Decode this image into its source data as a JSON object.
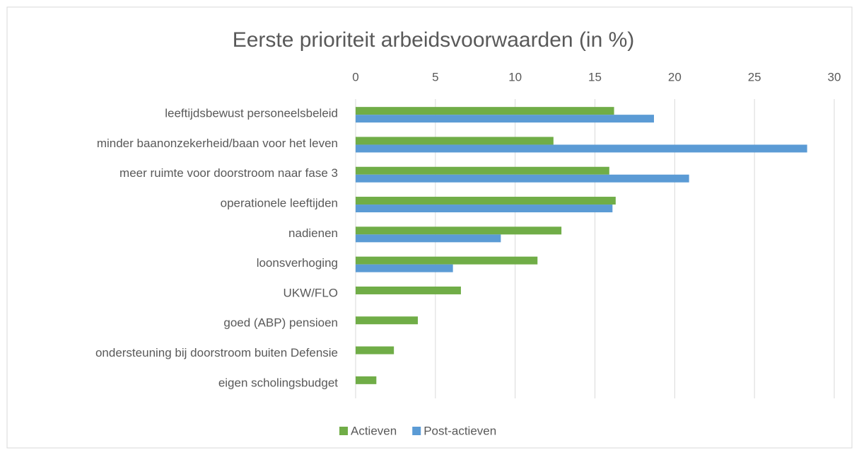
{
  "chart_data": {
    "type": "bar",
    "orientation": "horizontal",
    "title": "Eerste prioriteit arbeidsvoorwaarden (in %)",
    "categories": [
      "leeftijdsbewust personeelsbeleid",
      "minder baanonzekerheid/baan voor het leven",
      "meer ruimte voor doorstroom naar fase 3",
      "operationele leeftijden",
      "nadienen",
      "loonsverhoging",
      "UKW/FLO",
      "goed (ABP) pensioen",
      "ondersteuning bij doorstroom buiten Defensie",
      "eigen scholingsbudget"
    ],
    "series": [
      {
        "name": "Actieven",
        "color": "#70ad47",
        "values": [
          16.2,
          12.4,
          15.9,
          16.3,
          12.9,
          11.4,
          6.6,
          3.9,
          2.4,
          1.3
        ]
      },
      {
        "name": "Post-actieven",
        "color": "#5b9bd5",
        "values": [
          18.7,
          28.3,
          20.9,
          16.1,
          9.1,
          6.1,
          null,
          null,
          null,
          null
        ]
      }
    ],
    "xlim": [
      0,
      30
    ],
    "xticks": [
      0,
      5,
      10,
      15,
      20,
      25,
      30
    ],
    "grid": true,
    "legend": "bottom"
  }
}
